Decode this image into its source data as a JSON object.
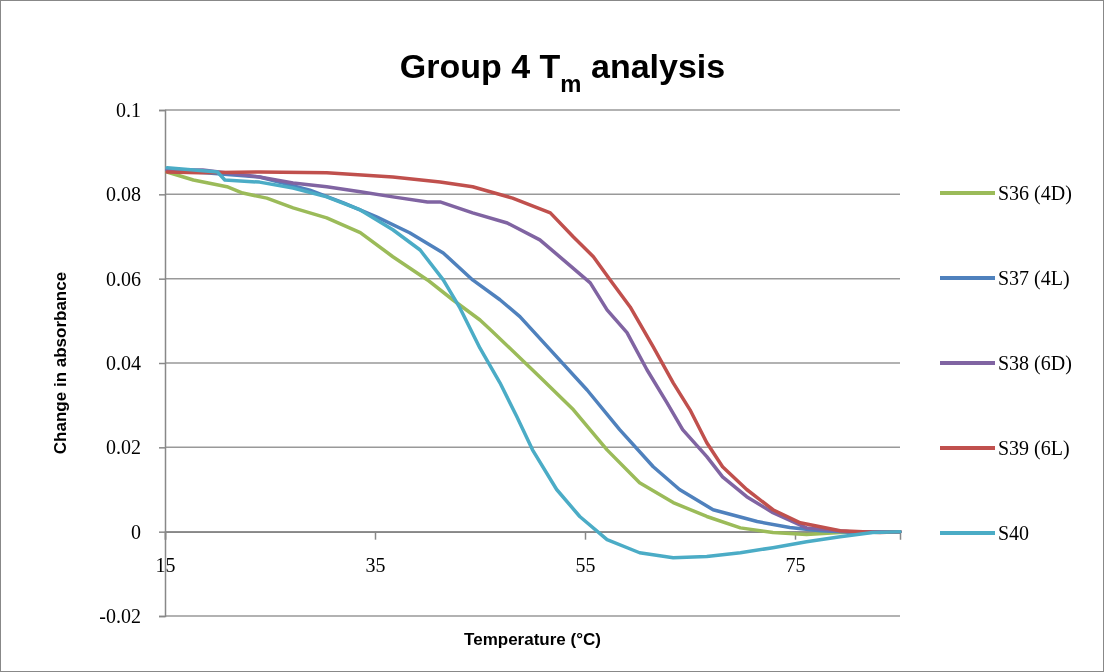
{
  "chart_data": {
    "type": "line",
    "title": "Group 4 T$_{m}$ analysis",
    "xlabel": "Temperature (°C)",
    "ylabel": "Change in absorbance",
    "xlim": [
      15,
      85
    ],
    "xticks": [
      15,
      35,
      55,
      75
    ],
    "ylim": [
      -0.02,
      0.1
    ],
    "yticks": [
      -0.02,
      0,
      0.02,
      0.04,
      0.06,
      0.08,
      0.1
    ],
    "grid": "y",
    "legend": "right",
    "series": [
      {
        "name": "S36 (4D)",
        "color": "#9bbb59",
        "x": [
          15.2,
          17.7,
          20.9,
          22.4,
          24.7,
          27.2,
          30.4,
          33.6,
          36.7,
          40,
          42.4,
          45,
          46,
          50.7,
          53.9,
          57.1,
          60.2,
          63.4,
          66.6,
          69.8,
          72.9,
          76.1,
          79.3,
          85
        ],
        "values": [
          0.0853,
          0.0834,
          0.0818,
          0.0803,
          0.0791,
          0.0768,
          0.0744,
          0.0709,
          0.0652,
          0.0597,
          0.055,
          0.0502,
          0.0479,
          0.0367,
          0.0289,
          0.0194,
          0.0116,
          0.0069,
          0.0036,
          0.0009,
          -0.0002,
          -0.0007,
          -0.0002,
          0
        ]
      },
      {
        "name": "S37 (4L)",
        "color": "#4f81bd",
        "x": [
          15.2,
          24,
          28.8,
          32,
          35.2,
          38.3,
          41.5,
          44.3,
          46.9,
          48.8,
          51.7,
          55.2,
          58.3,
          61.5,
          64,
          67.2,
          71.4,
          74.5,
          77.4,
          81.2,
          85
        ],
        "values": [
          0.0858,
          0.0841,
          0.081,
          0.078,
          0.0746,
          0.0709,
          0.0661,
          0.0597,
          0.055,
          0.051,
          0.0431,
          0.0336,
          0.0242,
          0.0154,
          0.01,
          0.0052,
          0.0024,
          0.001,
          0.0002,
          -0.0002,
          0
        ]
      },
      {
        "name": "S38 (6D)",
        "color": "#8064a2",
        "x": [
          15.2,
          18.6,
          24,
          27.2,
          30.4,
          33.6,
          36.7,
          40,
          41.2,
          44.3,
          47.6,
          50.7,
          53.3,
          55.5,
          57.1,
          59,
          60.9,
          62.8,
          64.3,
          66.6,
          68.1,
          70.4,
          72.9,
          76.1,
          80.2,
          85
        ],
        "values": [
          0.0858,
          0.0858,
          0.0841,
          0.0827,
          0.0818,
          0.0806,
          0.0794,
          0.0782,
          0.0782,
          0.0756,
          0.0732,
          0.0692,
          0.0637,
          0.059,
          0.0526,
          0.0472,
          0.0384,
          0.0306,
          0.0242,
          0.0178,
          0.013,
          0.0083,
          0.0045,
          0.0009,
          0,
          0
        ]
      },
      {
        "name": "S39 (6L)",
        "color": "#c0504d",
        "x": [
          15.2,
          18.3,
          24,
          30.4,
          36.7,
          41.2,
          44.3,
          48.1,
          51.7,
          53.9,
          55.8,
          57.4,
          59.3,
          61.5,
          63.4,
          65,
          66.6,
          68.1,
          70.4,
          72.9,
          75.5,
          79.3,
          83.1,
          85
        ],
        "values": [
          0.0853,
          0.0851,
          0.0853,
          0.0851,
          0.0841,
          0.0829,
          0.0818,
          0.0791,
          0.0756,
          0.0699,
          0.0652,
          0.0597,
          0.0533,
          0.0438,
          0.0353,
          0.0289,
          0.0211,
          0.0154,
          0.01,
          0.0052,
          0.0021,
          0.0002,
          -0.0002,
          0
        ]
      },
      {
        "name": "S40",
        "color": "#4bacc6",
        "x": [
          15.2,
          20,
          20.7,
          24,
          27.2,
          30.4,
          33.6,
          36.7,
          39.3,
          41.5,
          43.1,
          45,
          46.9,
          48.5,
          50,
          52.3,
          54.5,
          57.1,
          60.2,
          63.4,
          66.6,
          69.8,
          72.9,
          76.1,
          79.3,
          82.4,
          85
        ],
        "values": [
          0.0863,
          0.0853,
          0.0834,
          0.0829,
          0.0815,
          0.0794,
          0.0763,
          0.0716,
          0.0668,
          0.0597,
          0.053,
          0.0435,
          0.0353,
          0.0273,
          0.0194,
          0.01,
          0.0036,
          -0.0019,
          -0.005,
          -0.0062,
          -0.0059,
          -0.005,
          -0.0038,
          -0.0024,
          -0.0012,
          -0.0002,
          0
        ]
      }
    ]
  }
}
